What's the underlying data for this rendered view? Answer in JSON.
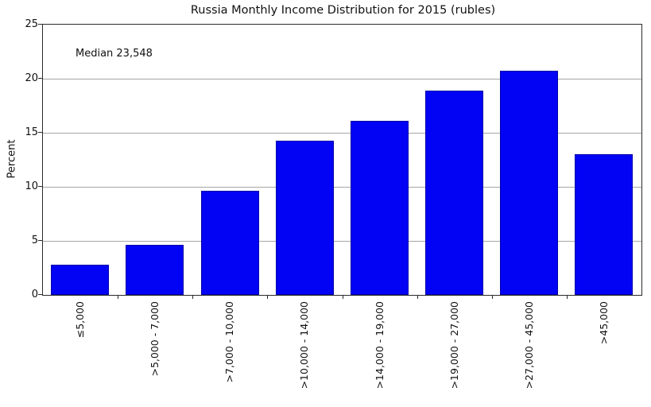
{
  "chart": {
    "title": "Russia Monthly Income Distribution for 2015 (rubles)",
    "annotation": "Median 23,548",
    "ylabel": "Percent"
  },
  "chart_data": {
    "type": "bar",
    "title": "Russia Monthly Income Distribution for 2015 (rubles)",
    "categories": [
      "≤5,000",
      ">5,000 - 7,000",
      ">7,000 - 10,000",
      ">10,000 - 14,000",
      ">14,000 - 19,000",
      ">19,000 - 27,000",
      ">27,000 - 45,000",
      ">45,000"
    ],
    "values": [
      2.8,
      4.6,
      9.6,
      14.3,
      16.1,
      18.9,
      20.7,
      13.0
    ],
    "xlabel": "",
    "ylabel": "Percent",
    "ylim": [
      0,
      25
    ],
    "yticks": [
      0,
      5,
      10,
      15,
      20,
      25
    ],
    "annotation": "Median 23,548",
    "grid": true,
    "legend": "none",
    "x_tick_style": "category-boundaries",
    "x_label_rotation_deg": 90,
    "colors": {
      "bar_fill": "#0202f5",
      "bar_edge": "#0000a8",
      "grid": "#a6a6a6",
      "spine": "#2b2b2b",
      "text": "#111111",
      "background": "#ffffff"
    }
  }
}
